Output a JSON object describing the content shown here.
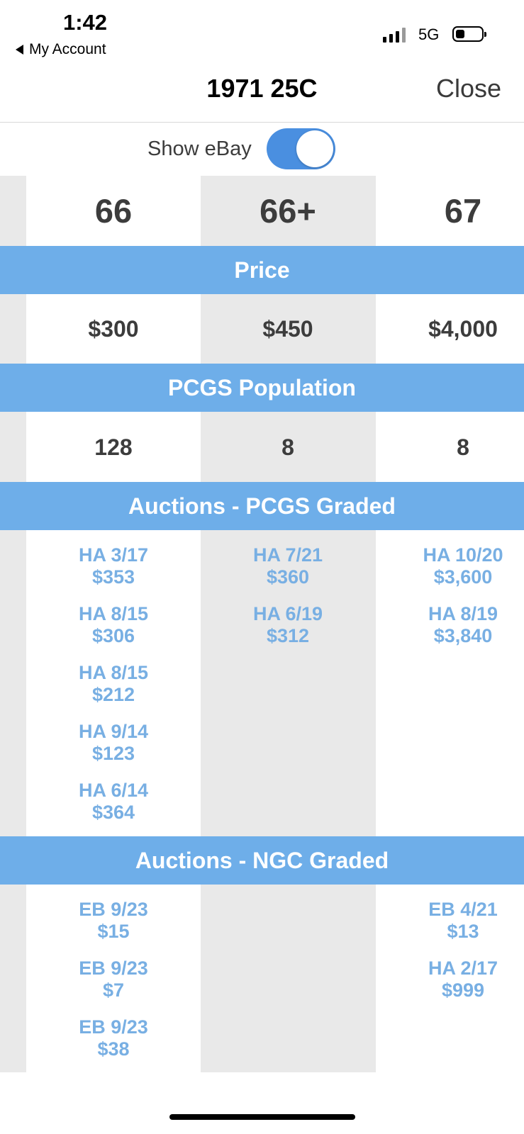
{
  "status_bar": {
    "time": "1:42",
    "back_label": "My Account",
    "network": "5G"
  },
  "nav": {
    "title": "1971 25C",
    "close_label": "Close"
  },
  "toggle": {
    "label": "Show eBay",
    "on": true
  },
  "grades": [
    "66",
    "66+",
    "67"
  ],
  "sections": {
    "price": {
      "title": "Price",
      "values": [
        "$300",
        "$450",
        "$4,000"
      ]
    },
    "population": {
      "title": "PCGS Population",
      "values": [
        "128",
        "8",
        "8"
      ]
    },
    "pcgs_auctions": {
      "title": "Auctions - PCGS Graded",
      "columns": [
        [
          {
            "date": "HA 3/17",
            "price": "$353"
          },
          {
            "date": "HA 8/15",
            "price": "$306"
          },
          {
            "date": "HA 8/15",
            "price": "$212"
          },
          {
            "date": "HA 9/14",
            "price": "$123"
          },
          {
            "date": "HA 6/14",
            "price": "$364"
          }
        ],
        [
          {
            "date": "HA 7/21",
            "price": "$360"
          },
          {
            "date": "HA 6/19",
            "price": "$312"
          }
        ],
        [
          {
            "date": "HA 10/20",
            "price": "$3,600"
          },
          {
            "date": "HA 8/19",
            "price": "$3,840"
          }
        ]
      ]
    },
    "ngc_auctions": {
      "title": "Auctions - NGC Graded",
      "columns": [
        [
          {
            "date": "EB 9/23",
            "price": "$15"
          },
          {
            "date": "EB 9/23",
            "price": "$7"
          },
          {
            "date": "EB 9/23",
            "price": "$38"
          }
        ],
        [],
        [
          {
            "date": "EB 4/21",
            "price": "$13"
          },
          {
            "date": "HA 2/17",
            "price": "$999"
          }
        ]
      ]
    }
  },
  "colors": {
    "band": "#6eaee9",
    "link": "#78afe3",
    "toggle": "#4a8fe0",
    "column_shade": "#e9e9e9"
  }
}
